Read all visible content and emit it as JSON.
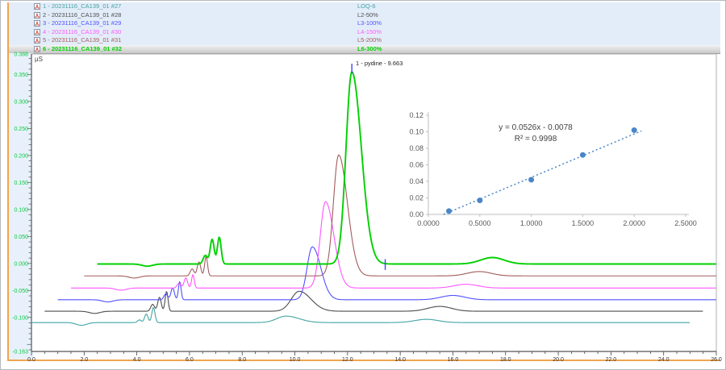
{
  "chart_data": {
    "type": "line",
    "title": "Chromatogram overlay with calibration inset",
    "main_plot": {
      "y_unit": "µS",
      "x_range": [
        0.0,
        26.0
      ],
      "y_range": [
        -0.163,
        0.388
      ],
      "x_major_tick_step": 2.0,
      "x_minor_tick_step": 0.5,
      "y_major_tick_step": 0.05,
      "y_minor_tick_step": 0.01,
      "x_tick_labels": [
        "0.0",
        "2.0",
        "4.0",
        "6.0",
        "8.0",
        "10.0",
        "12.0",
        "14.0",
        "16.0",
        "18.0",
        "20.0",
        "22.0",
        "24.0",
        "26.0"
      ],
      "y_ticks": [
        {
          "v": 0.388,
          "label": "0.388"
        },
        {
          "v": 0.35,
          "label": "0.350"
        },
        {
          "v": 0.3,
          "label": "0.300"
        },
        {
          "v": 0.25,
          "label": "0.250"
        },
        {
          "v": 0.2,
          "label": "0.200"
        },
        {
          "v": 0.15,
          "label": "0.150"
        },
        {
          "v": 0.1,
          "label": "0.100"
        },
        {
          "v": 0.05,
          "label": "0.050"
        },
        {
          "v": 0.0,
          "label": "0.000"
        },
        {
          "v": -0.05,
          "label": "-0.050"
        },
        {
          "v": -0.1,
          "label": "-0.100"
        },
        {
          "v": -0.163,
          "label": "-0.163"
        }
      ],
      "peak_label": "1 - pydine - 9.663",
      "peak_retention_time": 9.663,
      "axis_label_color": "#0cc944",
      "markers": [
        {
          "x_time": 12.163,
          "v_top": 0.37,
          "v_bot": 0.352,
          "color": "#4444ff"
        },
        {
          "x_time": 13.43,
          "v_top": 0.008,
          "v_bot": -0.012,
          "color": "#4444ff"
        }
      ],
      "traces": [
        {
          "name": "1 - 20231116_CA139_01 #27",
          "level": "LOQ-6",
          "color": "#43a3a3",
          "width": 1.1,
          "selected": false,
          "baseline": -0.1095,
          "x_offset": 0.0,
          "t_end": 25.0,
          "peaks": [
            {
              "t": 1.9,
              "h": -0.005,
              "s": 0.2
            },
            {
              "t": 4.1,
              "h": 0.005,
              "s": 0.07
            },
            {
              "t": 4.36,
              "h": 0.016,
              "s": 0.065
            },
            {
              "t": 4.63,
              "h": 0.028,
              "s": 0.06
            },
            {
              "t": 9.663,
              "h": 0.012,
              "s": 0.35,
              "sr": 0.5
            },
            {
              "t": 15.0,
              "h": 0.006,
              "s": 0.45
            }
          ]
        },
        {
          "name": "2 - 20231116_CA139_01 #28",
          "level": "L2-50%",
          "color": "#4d4d4d",
          "width": 1.1,
          "selected": false,
          "baseline": -0.0885,
          "x_offset": 0.5,
          "t_end": 25.0,
          "peaks": [
            {
              "t": 1.9,
              "h": -0.004,
              "s": 0.2
            },
            {
              "t": 4.1,
              "h": 0.013,
              "s": 0.07
            },
            {
              "t": 4.36,
              "h": 0.026,
              "s": 0.065
            },
            {
              "t": 4.63,
              "h": 0.037,
              "s": 0.055
            },
            {
              "t": 9.663,
              "h": 0.037,
              "s": 0.3,
              "sr": 0.45
            },
            {
              "t": 15.0,
              "h": 0.009,
              "s": 0.45
            }
          ]
        },
        {
          "name": "3 - 20231116_CA139_01 #29",
          "level": "L3-100%",
          "color": "#5050ff",
          "width": 1.1,
          "selected": false,
          "baseline": -0.0672,
          "x_offset": 1.0,
          "t_end": 25.0,
          "peaks": [
            {
              "t": 1.9,
              "h": -0.004,
              "s": 0.2
            },
            {
              "t": 4.1,
              "h": 0.011,
              "s": 0.07
            },
            {
              "t": 4.36,
              "h": 0.022,
              "s": 0.065
            },
            {
              "t": 4.63,
              "h": 0.034,
              "s": 0.05
            },
            {
              "t": 9.663,
              "h": 0.098,
              "s": 0.2,
              "sr": 0.32
            },
            {
              "t": 15.0,
              "h": 0.008,
              "s": 0.45
            }
          ]
        },
        {
          "name": "4 - 20231116_CA139_01 #30",
          "level": "L4-150%",
          "color": "#ff55ff",
          "width": 1.1,
          "selected": false,
          "baseline": -0.0455,
          "x_offset": 1.5,
          "t_end": 25.0,
          "peaks": [
            {
              "t": 1.9,
              "h": -0.004,
              "s": 0.2
            },
            {
              "t": 4.1,
              "h": 0.009,
              "s": 0.07
            },
            {
              "t": 4.36,
              "h": 0.019,
              "s": 0.065
            },
            {
              "t": 4.63,
              "h": 0.025,
              "s": 0.05
            },
            {
              "t": 9.663,
              "h": 0.16,
              "s": 0.2,
              "sr": 0.32
            },
            {
              "t": 15.0,
              "h": 0.007,
              "s": 0.45
            }
          ]
        },
        {
          "name": "5 - 20231116_CA139_01 #31",
          "level": "L5-200%",
          "color": "#a35b5b",
          "width": 1.1,
          "selected": false,
          "baseline": -0.023,
          "x_offset": 2.0,
          "t_end": 25.0,
          "peaks": [
            {
              "t": 1.9,
              "h": -0.004,
              "s": 0.2
            },
            {
              "t": 4.1,
              "h": 0.013,
              "s": 0.07
            },
            {
              "t": 4.36,
              "h": 0.026,
              "s": 0.065
            },
            {
              "t": 4.63,
              "h": 0.036,
              "s": 0.055
            },
            {
              "t": 9.663,
              "h": 0.224,
              "s": 0.2,
              "sr": 0.33
            },
            {
              "t": 15.0,
              "h": 0.008,
              "s": 0.45
            }
          ]
        },
        {
          "name": "6 - 20231116_CA139_01 #32",
          "level": "L6-300%",
          "color": "#00d000",
          "width": 1.9,
          "selected": true,
          "baseline": -0.001,
          "x_offset": 2.5,
          "t_end": 25.0,
          "peaks": [
            {
              "t": 1.9,
              "h": -0.004,
              "s": 0.2
            },
            {
              "t": 4.1,
              "h": 0.016,
              "s": 0.08
            },
            {
              "t": 4.36,
              "h": 0.046,
              "s": 0.075
            },
            {
              "t": 4.63,
              "h": 0.05,
              "s": 0.07
            },
            {
              "t": 9.663,
              "h": 0.356,
              "s": 0.22,
              "sr": 0.36
            },
            {
              "t": 15.0,
              "h": 0.012,
              "s": 0.45
            }
          ]
        }
      ]
    },
    "inset": {
      "type": "scatter",
      "points": [
        [
          0.2,
          0.004
        ],
        [
          0.5,
          0.017
        ],
        [
          1.0,
          0.042
        ],
        [
          1.5,
          0.072
        ],
        [
          2.0,
          0.102
        ]
      ],
      "trendline": {
        "slope": 0.0526,
        "intercept": -0.0078,
        "x_start": 0.148,
        "x_end": 2.07,
        "style": "dotted"
      },
      "equation": "y = 0.0526x - 0.0078",
      "r_squared": "R² = 0.9998",
      "x_tick_labels": [
        "0.0000",
        "0.5000",
        "1.0000",
        "1.5000",
        "2.0000",
        "2.5000"
      ],
      "y_tick_labels": [
        "0.00",
        "0.02",
        "0.04",
        "0.06",
        "0.08",
        "0.10",
        "0.12"
      ],
      "x_range": [
        0.0,
        2.5
      ],
      "y_range": [
        0.0,
        0.12
      ],
      "point_color": "#4a86c8",
      "axis_color": "#bfbfbf",
      "label_color": "#595959"
    }
  },
  "colors": {
    "panel_border_orange": "#efa54e",
    "legend_bg": "#e3edf9",
    "gutter_bg": "#e8f1fb",
    "selected_row_bg": "#d4d4d4",
    "plot_frame": "#b0b0b0",
    "axis_line": "#555555"
  }
}
